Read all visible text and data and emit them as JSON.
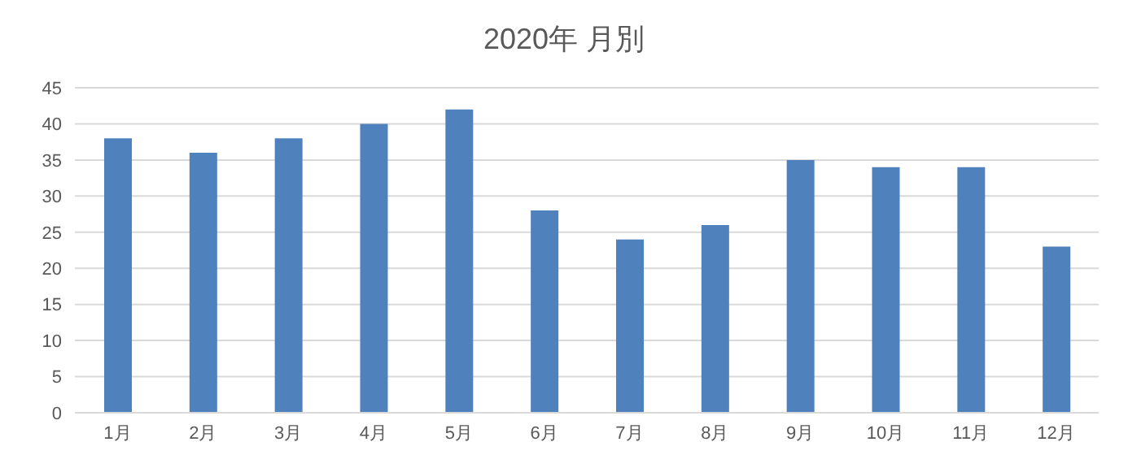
{
  "chart_data": {
    "type": "bar",
    "title": "2020年  月別",
    "categories": [
      "1月",
      "2月",
      "3月",
      "4月",
      "5月",
      "6月",
      "7月",
      "8月",
      "9月",
      "10月",
      "11月",
      "12月"
    ],
    "values": [
      38,
      36,
      38,
      40,
      42,
      28,
      24,
      26,
      35,
      34,
      34,
      23
    ],
    "color": "#4f81bd",
    "ylim": [
      0,
      45
    ],
    "yticks": [
      0,
      5,
      10,
      15,
      20,
      25,
      30,
      35,
      40,
      45
    ],
    "grid": "y"
  }
}
